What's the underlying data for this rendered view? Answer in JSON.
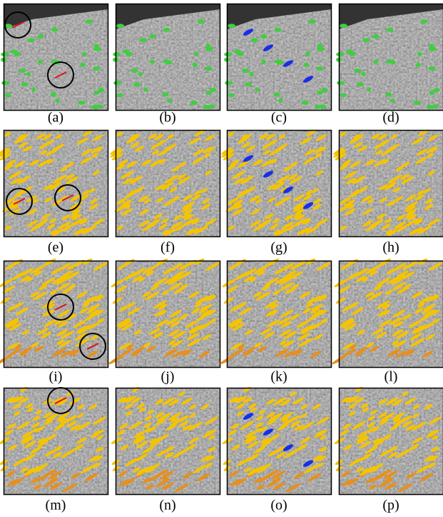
{
  "labels": [
    "(a)",
    "(b)",
    "(c)",
    "(d)",
    "(e)",
    "(f)",
    "(g)",
    "(h)",
    "(i)",
    "(j)",
    "(k)",
    "(l)",
    "(m)",
    "(n)",
    "(o)",
    "(p)"
  ]
}
